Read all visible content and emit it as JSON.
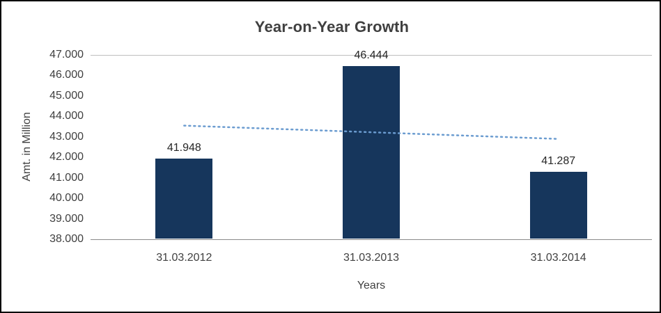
{
  "chart_data": {
    "type": "bar",
    "title": "Year-on-Year Growth",
    "xlabel": "Years",
    "ylabel": "Amt. in Million",
    "categories": [
      "31.03.2012",
      "31.03.2013",
      "31.03.2014"
    ],
    "values": [
      41.948,
      46.444,
      41.287
    ],
    "data_labels": [
      "41.948",
      "46.444",
      "41.287"
    ],
    "ylim": [
      38.0,
      47.0
    ],
    "ytick_step": 1.0,
    "ytick_labels": [
      "38.000",
      "39.000",
      "40.000",
      "41.000",
      "42.000",
      "43.000",
      "44.000",
      "45.000",
      "46.000",
      "47.000"
    ],
    "grid": false,
    "legend": false,
    "bar_color": "#16365C",
    "trendline": {
      "style": "dotted",
      "color": "#6B9CD0",
      "start_value": 43.55,
      "end_value": 42.9
    }
  },
  "colors": {
    "title_text": "#3F3F3F",
    "axis_text": "#404040",
    "axis_line": "#898989",
    "plot_border": "#BFBFBF",
    "background": "#FFFFFF",
    "frame_border": "#000000"
  }
}
